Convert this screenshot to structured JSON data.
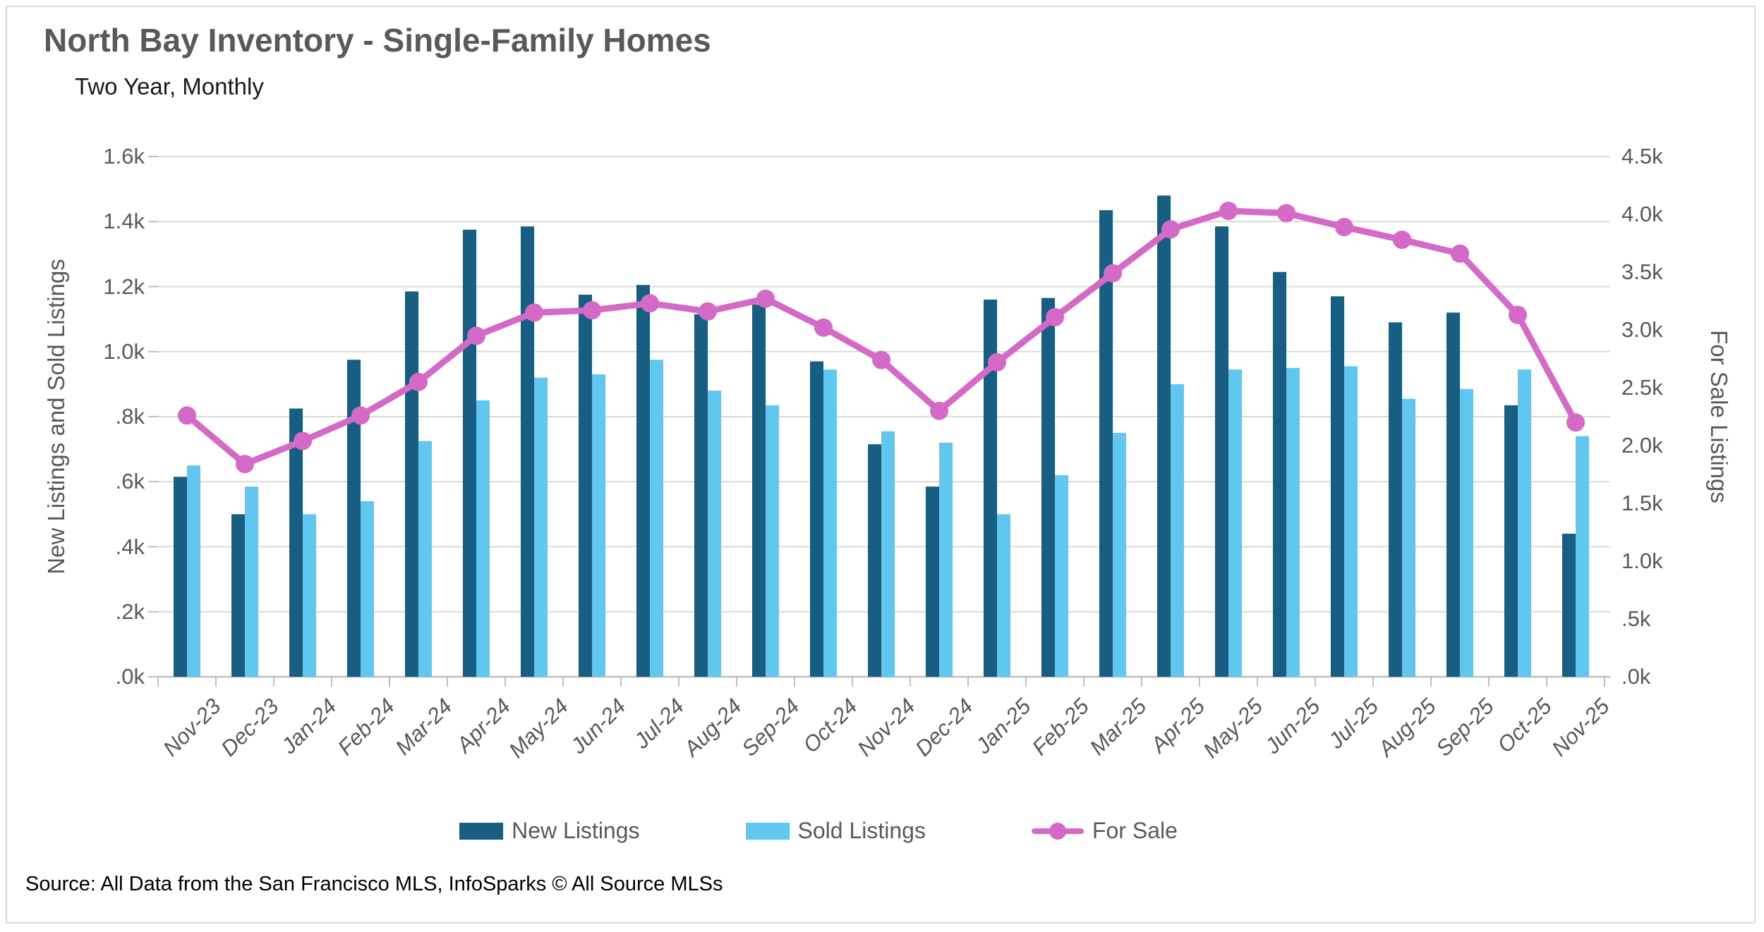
{
  "header": {
    "title": "North Bay Inventory - Single-Family Homes",
    "subtitle": "Two Year, Monthly"
  },
  "source_note": "Source: All Data from the San Francisco MLS, InfoSparks © All Source MLSs",
  "legend": {
    "position": "bottom",
    "items": [
      {
        "label": "New Listings"
      },
      {
        "label": "Sold Listings"
      },
      {
        "label": "For Sale"
      }
    ]
  },
  "colors": {
    "new_listings": "#175E82",
    "sold_listings": "#60C8F0",
    "for_sale": "#D569C7",
    "gridline": "#D9D9D9",
    "axis": "#BFBFBF",
    "text_gray": "#595959"
  },
  "chart_data": {
    "type": "combo-bar-line",
    "title": "North Bay Inventory - Single-Family Homes",
    "subtitle": "Two Year, Monthly",
    "units": "listings (axis labels shown in thousands)",
    "grid": true,
    "legend_position": "bottom",
    "categories": [
      "Nov-23",
      "Dec-23",
      "Jan-24",
      "Feb-24",
      "Mar-24",
      "Apr-24",
      "May-24",
      "Jun-24",
      "Jul-24",
      "Aug-24",
      "Sep-24",
      "Oct-24",
      "Nov-24",
      "Dec-24",
      "Jan-25",
      "Feb-25",
      "Mar-25",
      "Apr-25",
      "May-25",
      "Jun-25",
      "Jul-25",
      "Aug-25",
      "Sep-25",
      "Oct-25",
      "Nov-25"
    ],
    "series": [
      {
        "name": "New Listings",
        "type": "bar",
        "axis": "left",
        "color": "#175E82",
        "values": [
          615,
          500,
          825,
          975,
          1185,
          1375,
          1385,
          1175,
          1205,
          1115,
          1145,
          970,
          715,
          585,
          1160,
          1165,
          1435,
          1480,
          1385,
          1245,
          1170,
          1090,
          1120,
          835,
          440
        ]
      },
      {
        "name": "Sold Listings",
        "type": "bar",
        "axis": "left",
        "color": "#60C8F0",
        "values": [
          650,
          585,
          500,
          540,
          725,
          850,
          920,
          930,
          975,
          880,
          835,
          945,
          755,
          720,
          500,
          620,
          750,
          900,
          945,
          950,
          955,
          855,
          885,
          945,
          740
        ]
      },
      {
        "name": "For Sale",
        "type": "line",
        "axis": "right",
        "color": "#D569C7",
        "values": [
          2260,
          1840,
          2040,
          2260,
          2550,
          2950,
          3150,
          3170,
          3230,
          3160,
          3270,
          3020,
          2740,
          2300,
          2720,
          3110,
          3490,
          3870,
          4030,
          4010,
          3890,
          3780,
          3660,
          3130,
          2200
        ]
      }
    ],
    "left_axis": {
      "title": "New Listings and Sold Listings",
      "min": 0,
      "max": 1600,
      "tick_labels": [
        "1.6k",
        "1.4k",
        "1.2k",
        "1.0k",
        ".8k",
        ".6k",
        ".4k",
        ".2k",
        ".0k"
      ]
    },
    "right_axis": {
      "title": "For Sale Listings",
      "min": 0,
      "max": 4500,
      "tick_labels": [
        "4.5k",
        "4.0k",
        "3.5k",
        "3.0k",
        "2.5k",
        "2.0k",
        "1.5k",
        "1.0k",
        ".5k",
        ".0k"
      ]
    }
  }
}
